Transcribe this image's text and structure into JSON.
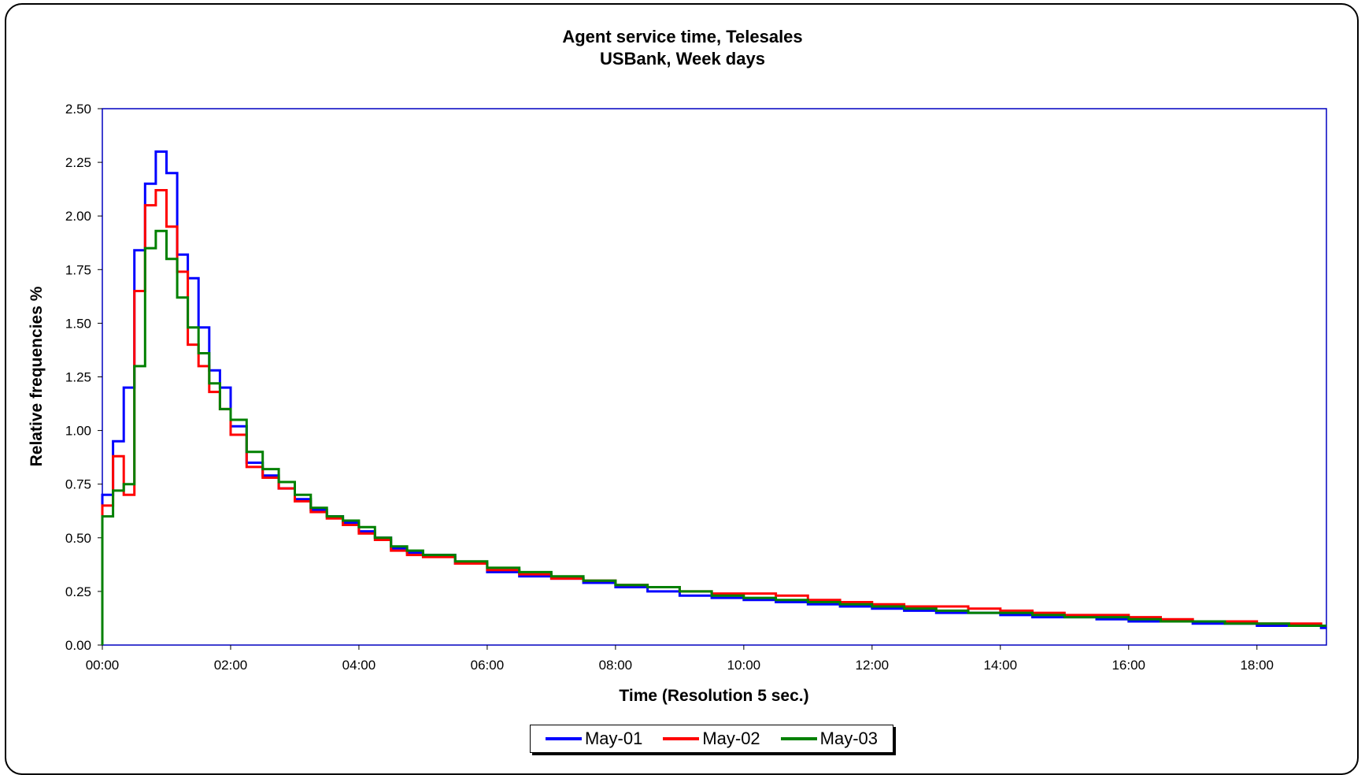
{
  "chart_data": {
    "type": "line",
    "title": "Agent service time, Telesales",
    "subtitle": "USBank, Week days",
    "xlabel": "Time (Resolution 5 sec.)",
    "ylabel": "Relative frequencies %",
    "xlim": [
      "00:00",
      "19:05"
    ],
    "ylim": [
      0,
      2.5
    ],
    "x_ticks": [
      "00:00",
      "02:00",
      "04:00",
      "06:00",
      "08:00",
      "10:00",
      "12:00",
      "14:00",
      "16:00",
      "18:00"
    ],
    "y_ticks": [
      "0.00",
      "0.25",
      "0.50",
      "0.75",
      "1.00",
      "1.25",
      "1.50",
      "1.75",
      "2.00",
      "2.25",
      "2.50"
    ],
    "grid": false,
    "legend_position": "bottom",
    "step": "5 sec.",
    "x": [
      "00:00",
      "00:10",
      "00:20",
      "00:30",
      "00:40",
      "00:50",
      "01:00",
      "01:10",
      "01:20",
      "01:30",
      "01:40",
      "01:50",
      "02:00",
      "02:15",
      "02:30",
      "02:45",
      "03:00",
      "03:15",
      "03:30",
      "03:45",
      "04:00",
      "04:15",
      "04:30",
      "04:45",
      "05:00",
      "05:30",
      "06:00",
      "06:30",
      "07:00",
      "07:30",
      "08:00",
      "08:30",
      "09:00",
      "09:30",
      "10:00",
      "10:30",
      "11:00",
      "11:30",
      "12:00",
      "12:30",
      "13:00",
      "13:30",
      "14:00",
      "14:30",
      "15:00",
      "15:30",
      "16:00",
      "16:30",
      "17:00",
      "17:30",
      "18:00",
      "18:30",
      "19:00"
    ],
    "series": [
      {
        "name": "May-01",
        "color": "#0000ff",
        "values": [
          0.7,
          0.95,
          1.2,
          1.84,
          2.15,
          2.3,
          2.2,
          1.82,
          1.71,
          1.48,
          1.28,
          1.2,
          1.02,
          0.85,
          0.79,
          0.73,
          0.68,
          0.63,
          0.6,
          0.57,
          0.53,
          0.5,
          0.45,
          0.43,
          0.42,
          0.38,
          0.34,
          0.32,
          0.31,
          0.29,
          0.27,
          0.25,
          0.23,
          0.22,
          0.21,
          0.2,
          0.19,
          0.18,
          0.17,
          0.16,
          0.15,
          0.15,
          0.14,
          0.13,
          0.13,
          0.12,
          0.11,
          0.11,
          0.1,
          0.1,
          0.09,
          0.09,
          0.08
        ]
      },
      {
        "name": "May-02",
        "color": "#ff0000",
        "values": [
          0.65,
          0.88,
          0.7,
          1.65,
          2.05,
          2.12,
          1.95,
          1.74,
          1.4,
          1.3,
          1.18,
          1.1,
          0.98,
          0.83,
          0.78,
          0.73,
          0.67,
          0.62,
          0.59,
          0.56,
          0.52,
          0.49,
          0.44,
          0.42,
          0.41,
          0.38,
          0.35,
          0.33,
          0.31,
          0.3,
          0.28,
          0.27,
          0.25,
          0.24,
          0.24,
          0.23,
          0.21,
          0.2,
          0.19,
          0.18,
          0.18,
          0.17,
          0.16,
          0.15,
          0.14,
          0.14,
          0.13,
          0.12,
          0.11,
          0.11,
          0.1,
          0.1,
          0.09
        ]
      },
      {
        "name": "May-03",
        "color": "#008000",
        "values": [
          0.6,
          0.72,
          0.75,
          1.3,
          1.85,
          1.93,
          1.8,
          1.62,
          1.48,
          1.36,
          1.22,
          1.1,
          1.05,
          0.9,
          0.82,
          0.76,
          0.7,
          0.64,
          0.6,
          0.58,
          0.55,
          0.5,
          0.46,
          0.44,
          0.42,
          0.39,
          0.36,
          0.34,
          0.32,
          0.3,
          0.28,
          0.27,
          0.25,
          0.23,
          0.22,
          0.21,
          0.2,
          0.19,
          0.18,
          0.17,
          0.16,
          0.15,
          0.15,
          0.14,
          0.13,
          0.13,
          0.12,
          0.11,
          0.11,
          0.1,
          0.1,
          0.09,
          0.09
        ]
      }
    ]
  }
}
